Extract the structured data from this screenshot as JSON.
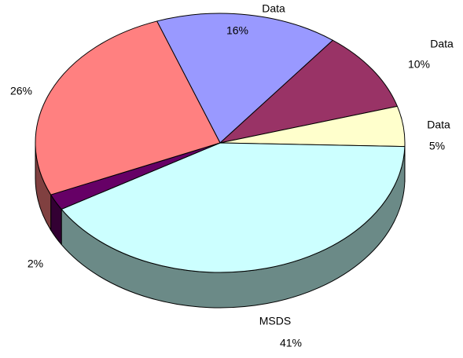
{
  "chart_data": {
    "type": "pie",
    "categories": [
      "Data",
      "Data",
      "Data",
      "MSDS",
      null,
      null
    ],
    "values": [
      16,
      10,
      5,
      41,
      2,
      26
    ],
    "value_labels": [
      "16%",
      "10%",
      "5%",
      "41%",
      "2%",
      "26%"
    ],
    "colors": [
      "#9999ff",
      "#993366",
      "#ffffcc",
      "#ccffff",
      "#660066",
      "#ff8080"
    ],
    "side_colors": [
      "#4d4d80",
      "#4d1a33",
      "#808066",
      "#6b8a87",
      "#330033",
      "#804040"
    ]
  }
}
